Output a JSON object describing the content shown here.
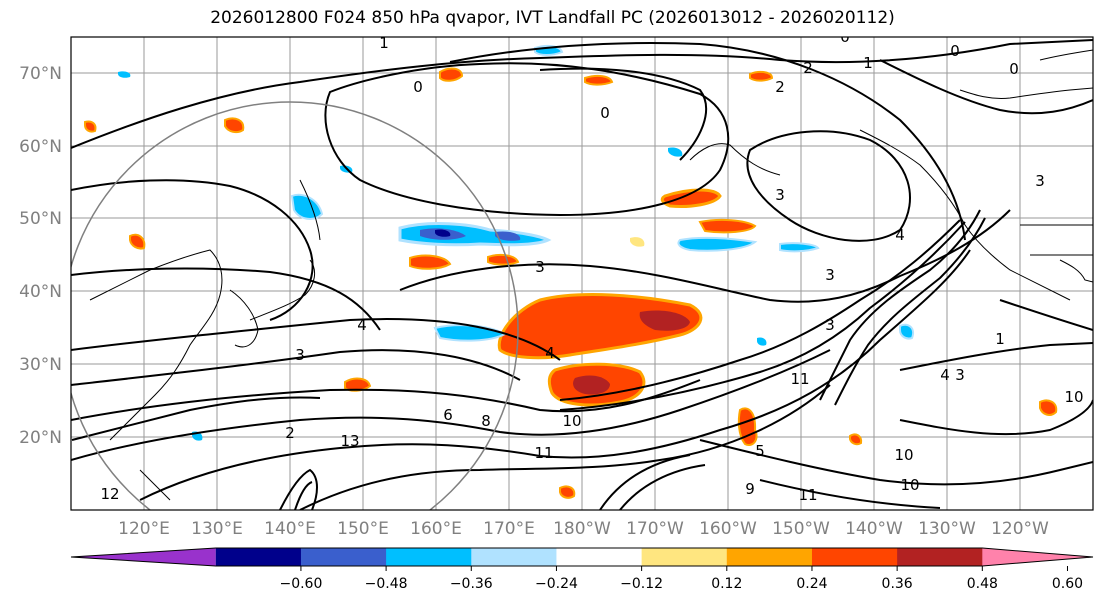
{
  "title": "2026012800 F024 850 hPa qvapor, IVT Landfall PC (2026013012 - 2026020112)",
  "map": {
    "lat_labels": [
      "70°N",
      "60°N",
      "50°N",
      "40°N",
      "30°N",
      "20°N"
    ],
    "lon_labels": [
      "120°E",
      "130°E",
      "140°E",
      "150°E",
      "160°E",
      "170°E",
      "180°W",
      "170°W",
      "160°W",
      "150°W",
      "140°W",
      "130°W",
      "120°W"
    ],
    "contour_labels": [
      "1",
      "0",
      "0",
      "2",
      "1",
      "0",
      "0",
      "2",
      "0",
      "3",
      "3",
      "3",
      "3",
      "3",
      "4",
      "4",
      "4",
      "3",
      "3",
      "5",
      "10",
      "11",
      "11",
      "9",
      "10",
      "10",
      "11",
      "12",
      "13",
      "10",
      "4",
      "1",
      "2",
      "8",
      "6"
    ],
    "colors": {
      "grid": "#999999",
      "contour": "#000000",
      "coast": "#000000"
    }
  },
  "colorbar": {
    "ticks": [
      "−0.60",
      "−0.48",
      "−0.36",
      "−0.24",
      "−0.12",
      "0.12",
      "0.24",
      "0.36",
      "0.48",
      "0.60"
    ],
    "colors": [
      "#9932CC",
      "#00008B",
      "#3A5FCD",
      "#00BFFF",
      "#B0E2FF",
      "#FFFFFF",
      "#FFE680",
      "#FFA500",
      "#FF4500",
      "#B22222",
      "#FF82AB"
    ]
  }
}
